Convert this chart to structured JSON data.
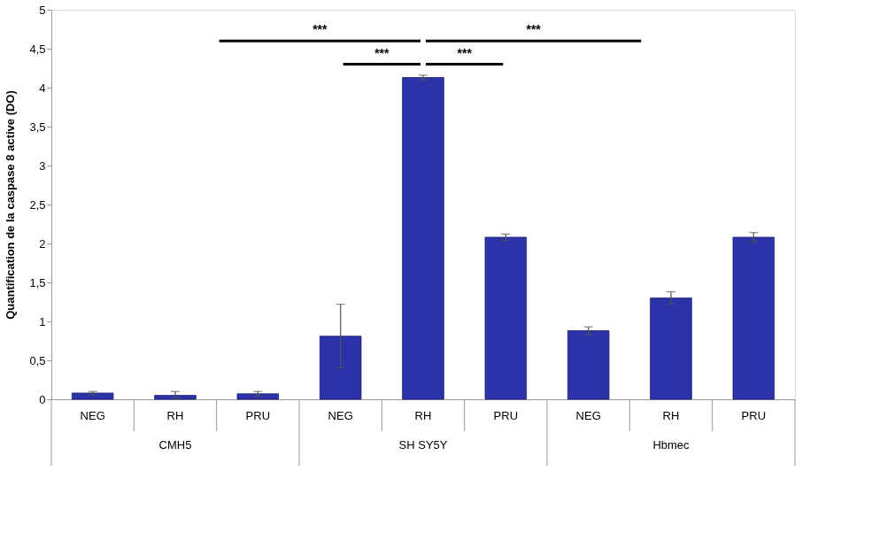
{
  "chart_data": {
    "type": "bar",
    "ylabel": "Quantification de la caspase 8 active (DO)",
    "categories": [
      "NEG",
      "RH",
      "PRU",
      "NEG",
      "RH",
      "PRU",
      "NEG",
      "RH",
      "PRU"
    ],
    "values": [
      0.08,
      0.05,
      0.07,
      0.81,
      4.13,
      2.08,
      0.88,
      1.3,
      2.08
    ],
    "errors": [
      0.02,
      [
        0.02,
        0.1
      ],
      0.03,
      0.41,
      0.03,
      0.04,
      0.05,
      0.08,
      0.06
    ],
    "color": "#2b33a8",
    "ylim": [
      0,
      5
    ],
    "yticks": [
      0,
      {
        "value": 0.5,
        "label": "0,5"
      },
      1,
      {
        "value": 1.5,
        "label": "1,5"
      },
      2,
      {
        "value": 2.5,
        "label": "2,5"
      },
      3,
      {
        "value": 3.5,
        "label": "3,5"
      },
      4,
      {
        "value": 4.5,
        "label": "4,5"
      },
      5
    ],
    "grid": false,
    "annotations": [
      "CMH5",
      "SH SY5Y",
      "Hbmec",
      "***",
      "***",
      "***",
      "***"
    ]
  }
}
